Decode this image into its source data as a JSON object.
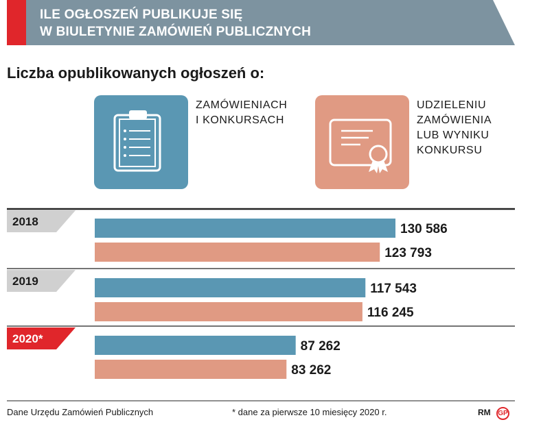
{
  "header": {
    "title_line1": "ILE OGŁOSZEŃ PUBLIKUJE SIĘ",
    "title_line2": "W BIULETYNIE ZAMÓWIEŃ PUBLICZNYCH",
    "bg_color": "#7d93a0",
    "accent_color": "#e0262b"
  },
  "subtitle": "Liczba opublikowanych ogłoszeń o:",
  "legend": [
    {
      "icon": "clipboard-icon",
      "color": "#5a97b3",
      "lines": [
        "ZAMÓWIENIACH",
        "I KONKURSACH"
      ]
    },
    {
      "icon": "certificate-icon",
      "color": "#e09a83",
      "lines": [
        "UDZIELENIU",
        "ZAMÓWIENIA",
        "LUB WYNIKU",
        "KONKURSU"
      ]
    }
  ],
  "chart_data": {
    "type": "bar",
    "orientation": "horizontal",
    "categories": [
      "2018",
      "2019",
      "2020*"
    ],
    "highlight_category": "2020*",
    "series": [
      {
        "name": "ZAMÓWIENIACH I KONKURSACH",
        "color": "#5a97b3",
        "values": [
          130586,
          117543,
          87262
        ],
        "labels": [
          "130 586",
          "117 543",
          "87 262"
        ]
      },
      {
        "name": "UDZIELENIU ZAMÓWIENIA LUB WYNIKU KONKURSU",
        "color": "#e09a83",
        "values": [
          123793,
          116245,
          83262
        ],
        "labels": [
          "123 793",
          "116 245",
          "83 262"
        ]
      }
    ],
    "year_tab_color": "#d0d0d0",
    "highlight_tab_color": "#e0262b"
  },
  "footer": {
    "source": "Dane Urzędu Zamówień Publicznych",
    "note": "* dane za pierwsze 10 miesięcy 2020 r.",
    "author": "RM",
    "logo": "GP"
  }
}
